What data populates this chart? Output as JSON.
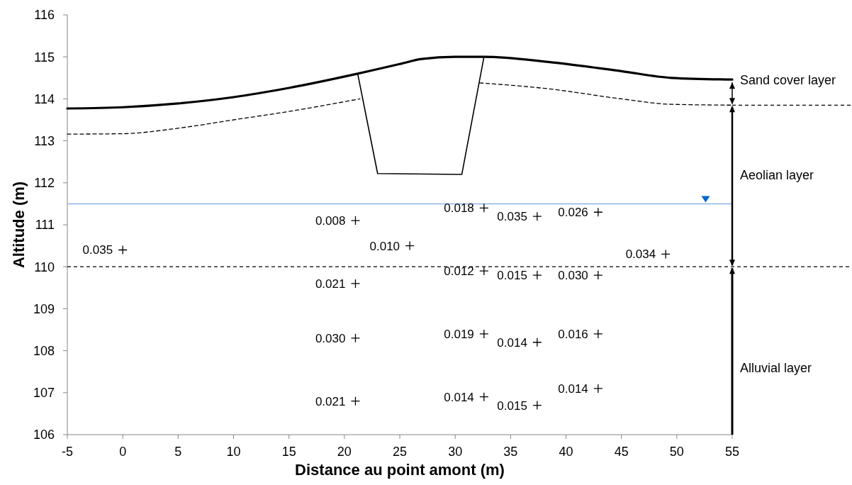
{
  "chart_data": {
    "type": "line",
    "xlabel": "Distance au point amont (m)",
    "ylabel": "Altitude (m)",
    "xlim": [
      -5,
      55
    ],
    "xticks": [
      -5,
      0,
      5,
      10,
      15,
      20,
      25,
      30,
      35,
      40,
      45,
      50,
      55
    ],
    "ylim": [
      106,
      116
    ],
    "yticks": [
      106,
      107,
      108,
      109,
      110,
      111,
      112,
      113,
      114,
      115,
      116
    ],
    "grid": false,
    "series": [
      {
        "color": "#000000",
        "line_style": "solid",
        "marker": "none",
        "x": [
          -5,
          0,
          5,
          10,
          15,
          21.2,
          25,
          27,
          30,
          32.6,
          38.4,
          45,
          49.5,
          55
        ],
        "values": [
          113.77,
          113.8,
          113.89,
          114.04,
          114.26,
          114.6,
          114.83,
          114.95,
          115.0,
          115.0,
          114.88,
          114.66,
          114.5,
          114.46
        ]
      },
      {
        "color": "#000000",
        "line_style": "dashed",
        "marker": "none",
        "x": [
          -5,
          0,
          5,
          10,
          15,
          21.4
        ],
        "values": [
          113.16,
          113.17,
          113.3,
          113.5,
          113.7,
          114.0
        ]
      },
      {
        "color": "#000000",
        "line_style": "dashed",
        "marker": "none",
        "x": [
          32.2,
          38.4,
          45,
          49.5,
          55
        ],
        "values": [
          114.38,
          114.24,
          114.0,
          113.87,
          113.85
        ]
      },
      {
        "color": "#000000",
        "line_style": "solid",
        "marker": "none",
        "x": [
          21.2,
          23.0,
          30.6,
          32.6
        ],
        "values": [
          114.6,
          112.22,
          112.2,
          115.0
        ]
      },
      {
        "type": "scatter",
        "color": "#000000",
        "marker": "cross",
        "x": [
          0,
          21,
          21,
          21,
          21,
          25.9,
          32.6,
          32.6,
          32.6,
          32.6,
          37.4,
          37.4,
          37.4,
          37.4,
          42.9,
          42.9,
          42.9,
          42.9,
          49
        ],
        "values": [
          110.4,
          111.1,
          109.6,
          108.3,
          106.8,
          110.5,
          111.4,
          109.9,
          108.4,
          106.9,
          111.2,
          109.8,
          108.2,
          106.7,
          111.3,
          109.8,
          108.4,
          107.1,
          110.3
        ]
      }
    ],
    "ref_lines": [
      {
        "axis": "y",
        "value": 111.5,
        "color": "#8db4e2",
        "line_style": "solid"
      },
      {
        "axis": "y",
        "value": 110,
        "color": "#000000",
        "line_style": "dashed"
      }
    ],
    "annotations": [
      "Sand cover layer",
      "Aeolian layer",
      "Alluvial layer",
      {
        "text": "0.035",
        "x": 0,
        "y": 110.4
      },
      {
        "text": "0.008",
        "x": 21,
        "y": 111.1
      },
      {
        "text": "0.021",
        "x": 21,
        "y": 109.6
      },
      {
        "text": "0.030",
        "x": 21,
        "y": 108.3
      },
      {
        "text": "0.021",
        "x": 21,
        "y": 106.8
      },
      {
        "text": "0.010",
        "x": 25.9,
        "y": 110.5
      },
      {
        "text": "0.018",
        "x": 32.6,
        "y": 111.4
      },
      {
        "text": "0.012",
        "x": 32.6,
        "y": 109.9
      },
      {
        "text": "0.019",
        "x": 32.6,
        "y": 108.4
      },
      {
        "text": "0.014",
        "x": 32.6,
        "y": 106.9
      },
      {
        "text": "0.035",
        "x": 37.4,
        "y": 111.2
      },
      {
        "text": "0.015",
        "x": 37.4,
        "y": 109.8
      },
      {
        "text": "0.014",
        "x": 37.4,
        "y": 108.2
      },
      {
        "text": "0.015",
        "x": 37.4,
        "y": 106.7
      },
      {
        "text": "0.026",
        "x": 42.9,
        "y": 111.3
      },
      {
        "text": "0.030",
        "x": 42.9,
        "y": 109.8
      },
      {
        "text": "0.016",
        "x": 42.9,
        "y": 108.4
      },
      {
        "text": "0.014",
        "x": 42.9,
        "y": 107.1
      },
      {
        "text": "0.034",
        "x": 49,
        "y": 110.3
      }
    ]
  }
}
